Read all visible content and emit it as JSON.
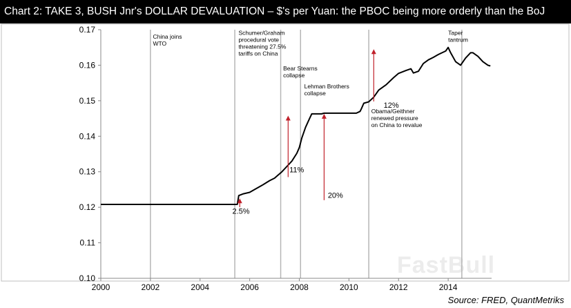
{
  "title": "Chart 2: TAKE 3, BUSH Jnr's DOLLAR DEVALUATION – $'s per Yuan: the PBOC being more orderly than the BoJ",
  "source": "Source: FRED, QuantMetriks",
  "watermark": "FastBull",
  "colors": {
    "line": "#000000",
    "arrow": "#c0202a",
    "vline": "#b5b5b5",
    "frame": "#bfbfbf"
  },
  "chart_data": {
    "type": "line",
    "title": "Chart 2: TAKE 3, BUSH Jnr's DOLLAR DEVALUATION – $'s per Yuan: the PBOC being more orderly than the BoJ",
    "xlim": [
      2000,
      2015.75
    ],
    "ylim": [
      0.1,
      0.17
    ],
    "x_ticks": [
      2000,
      2002,
      2004,
      2006,
      2008,
      2010,
      2012,
      2014
    ],
    "x_tick_labels": [
      "2000",
      "2002",
      "2004",
      "2006",
      "2008",
      "2010",
      "2012",
      "2014"
    ],
    "y_ticks": [
      0.1,
      0.11,
      0.12,
      0.13,
      0.14,
      0.15,
      0.16,
      0.17
    ],
    "y_tick_labels": [
      "0.10",
      "0.11",
      "0.12",
      "0.13",
      "0.14",
      "0.15",
      "0.16",
      "0.17"
    ],
    "grid": false,
    "series": [
      {
        "x": [
          2000.0,
          2001.0,
          2002.0,
          2003.0,
          2004.0,
          2005.0,
          2005.5,
          2005.56,
          2005.75,
          2006.0,
          2006.2,
          2006.5,
          2006.8,
          2007.0,
          2007.3,
          2007.5,
          2007.7,
          2007.9,
          2008.0,
          2008.1,
          2008.25,
          2008.4,
          2008.5,
          2008.7,
          2008.9,
          2009.0,
          2009.3,
          2009.6,
          2010.0,
          2010.3,
          2010.45,
          2010.5,
          2010.6,
          2010.8,
          2011.0,
          2011.2,
          2011.5,
          2011.8,
          2012.0,
          2012.3,
          2012.5,
          2012.6,
          2012.8,
          2013.0,
          2013.2,
          2013.4,
          2013.6,
          2013.9,
          2014.0,
          2014.1,
          2014.3,
          2014.5,
          2014.7,
          2014.9,
          2015.0,
          2015.2,
          2015.4,
          2015.6,
          2015.7
        ],
        "y": [
          0.1208,
          0.1208,
          0.1208,
          0.1208,
          0.1208,
          0.1208,
          0.1208,
          0.1233,
          0.1238,
          0.1242,
          0.125,
          0.1262,
          0.1275,
          0.1282,
          0.13,
          0.1315,
          0.133,
          0.1352,
          0.1368,
          0.1395,
          0.1425,
          0.1448,
          0.1463,
          0.1463,
          0.1463,
          0.1465,
          0.1465,
          0.1465,
          0.1465,
          0.1465,
          0.147,
          0.1477,
          0.1493,
          0.1497,
          0.151,
          0.153,
          0.1545,
          0.1565,
          0.1577,
          0.1585,
          0.159,
          0.1578,
          0.1583,
          0.1605,
          0.1615,
          0.1622,
          0.163,
          0.164,
          0.165,
          0.1635,
          0.161,
          0.16,
          0.162,
          0.1635,
          0.1635,
          0.1625,
          0.161,
          0.16,
          0.1598
        ]
      }
    ],
    "vertical_lines": [
      2002.0,
      2005.4,
      2007.25,
      2008.05,
      2010.8,
      2014.55
    ],
    "annotations": [
      {
        "text": [
          "China joins",
          "WTO"
        ],
        "x": 2002.1,
        "y": 0.1675,
        "anchor": "start"
      },
      {
        "text": [
          "Schumer/Graham",
          "procedural vote",
          "threatening 27.5%",
          "tariffs on China"
        ],
        "x": 2005.55,
        "y": 0.1685,
        "anchor": "start"
      },
      {
        "text": [
          "Bear Stearns",
          "collapse"
        ],
        "x": 2007.35,
        "y": 0.1585,
        "anchor": "start"
      },
      {
        "text": [
          "Lehman Brothers",
          "collapse"
        ],
        "x": 2008.2,
        "y": 0.1535,
        "anchor": "start"
      },
      {
        "text": [
          "Obama/Geithner",
          "renewed pressure",
          "on China to revalue"
        ],
        "x": 2010.9,
        "y": 0.1465,
        "anchor": "start"
      },
      {
        "text": [
          "Taper",
          "tantrum"
        ],
        "x": 2014.0,
        "y": 0.1685,
        "anchor": "start"
      }
    ],
    "arrows": [
      {
        "x": 2005.6,
        "y_from": 0.12,
        "y_to": 0.1225,
        "label": "2.5%",
        "label_x": 2005.3,
        "label_y": 0.1182
      },
      {
        "x": 2007.55,
        "y_from": 0.1285,
        "y_to": 0.1458,
        "label": "11%",
        "label_x": 2007.6,
        "label_y": 0.1298
      },
      {
        "x": 2009.0,
        "y_from": 0.122,
        "y_to": 0.1463,
        "label": "20%",
        "label_x": 2009.15,
        "label_y": 0.1227
      },
      {
        "x": 2011.0,
        "y_from": 0.1498,
        "y_to": 0.1645,
        "label": "12%",
        "label_x": 2011.4,
        "label_y": 0.148
      }
    ]
  }
}
